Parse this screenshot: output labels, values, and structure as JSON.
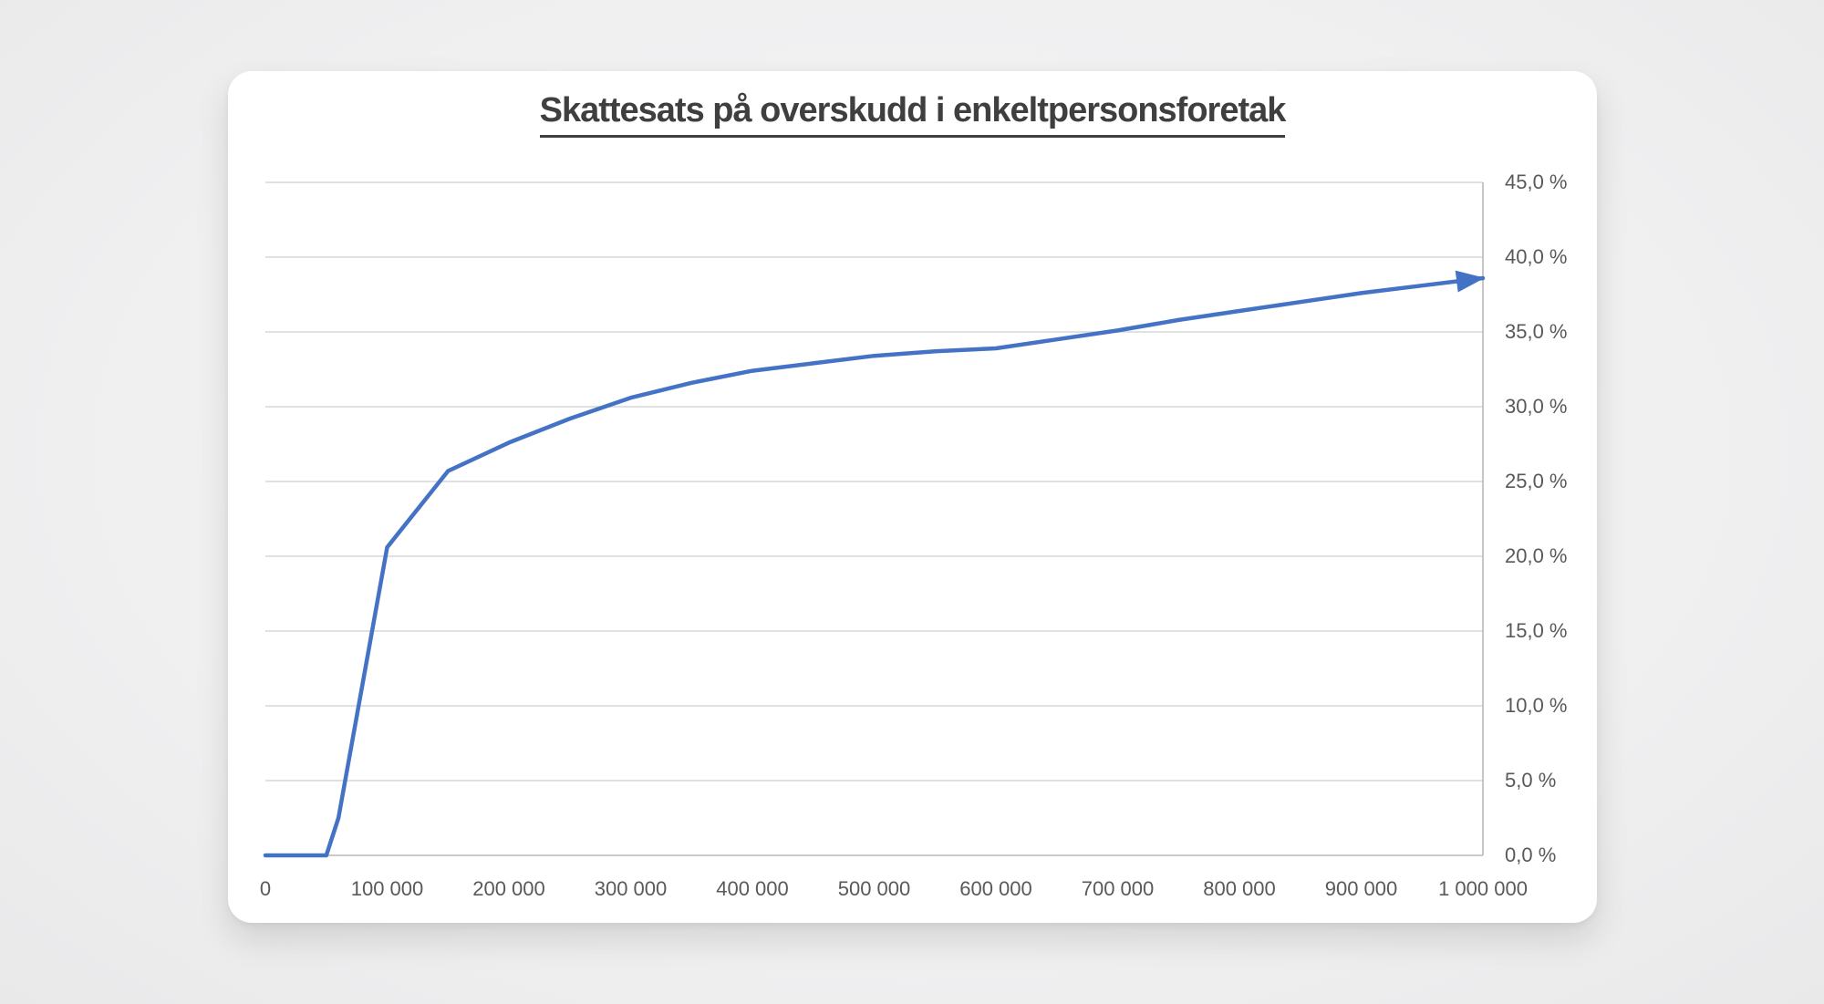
{
  "page": {
    "background_color": "#f0f0f1",
    "card_color": "#ffffff"
  },
  "colors": {
    "gridline": "#d7d7d7",
    "axis_line": "#b8b8b8",
    "tick_text": "#595959",
    "title_text": "#3f3f3f",
    "series_line": "#4472C4"
  },
  "chart_data": {
    "type": "line",
    "title": "Skattesats på overskudd i enkeltpersonsforetak",
    "title_underlined": true,
    "legend": "none",
    "grid": "horizontal",
    "x_axis": {
      "min": 0,
      "max": 1000000,
      "tick_interval": 100000,
      "tick_labels": [
        "0",
        "100 000",
        "200 000",
        "300 000",
        "400 000",
        "500 000",
        "600 000",
        "700 000",
        "800 000",
        "900 000",
        "1 000 000"
      ]
    },
    "y_axis": {
      "min": 0,
      "max": 45,
      "tick_interval": 5,
      "position": "right",
      "unit": "%",
      "tick_labels": [
        "0,0 %",
        "5,0 %",
        "10,0 %",
        "15,0 %",
        "20,0 %",
        "25,0 %",
        "30,0 %",
        "35,0 %",
        "40,0 %",
        "45,0 %"
      ]
    },
    "series": [
      {
        "color": "#4472C4",
        "ends_with_arrow": true,
        "points": [
          {
            "x": 0,
            "y": 0.0
          },
          {
            "x": 50000,
            "y": 0.0
          },
          {
            "x": 60000,
            "y": 2.5
          },
          {
            "x": 100000,
            "y": 20.6
          },
          {
            "x": 150000,
            "y": 25.7
          },
          {
            "x": 200000,
            "y": 27.6
          },
          {
            "x": 250000,
            "y": 29.2
          },
          {
            "x": 300000,
            "y": 30.6
          },
          {
            "x": 350000,
            "y": 31.6
          },
          {
            "x": 400000,
            "y": 32.4
          },
          {
            "x": 450000,
            "y": 32.9
          },
          {
            "x": 500000,
            "y": 33.4
          },
          {
            "x": 550000,
            "y": 33.7
          },
          {
            "x": 600000,
            "y": 33.9
          },
          {
            "x": 650000,
            "y": 34.5
          },
          {
            "x": 700000,
            "y": 35.1
          },
          {
            "x": 750000,
            "y": 35.8
          },
          {
            "x": 800000,
            "y": 36.4
          },
          {
            "x": 850000,
            "y": 37.0
          },
          {
            "x": 900000,
            "y": 37.6
          },
          {
            "x": 950000,
            "y": 38.1
          },
          {
            "x": 1000000,
            "y": 38.6
          }
        ]
      }
    ]
  }
}
